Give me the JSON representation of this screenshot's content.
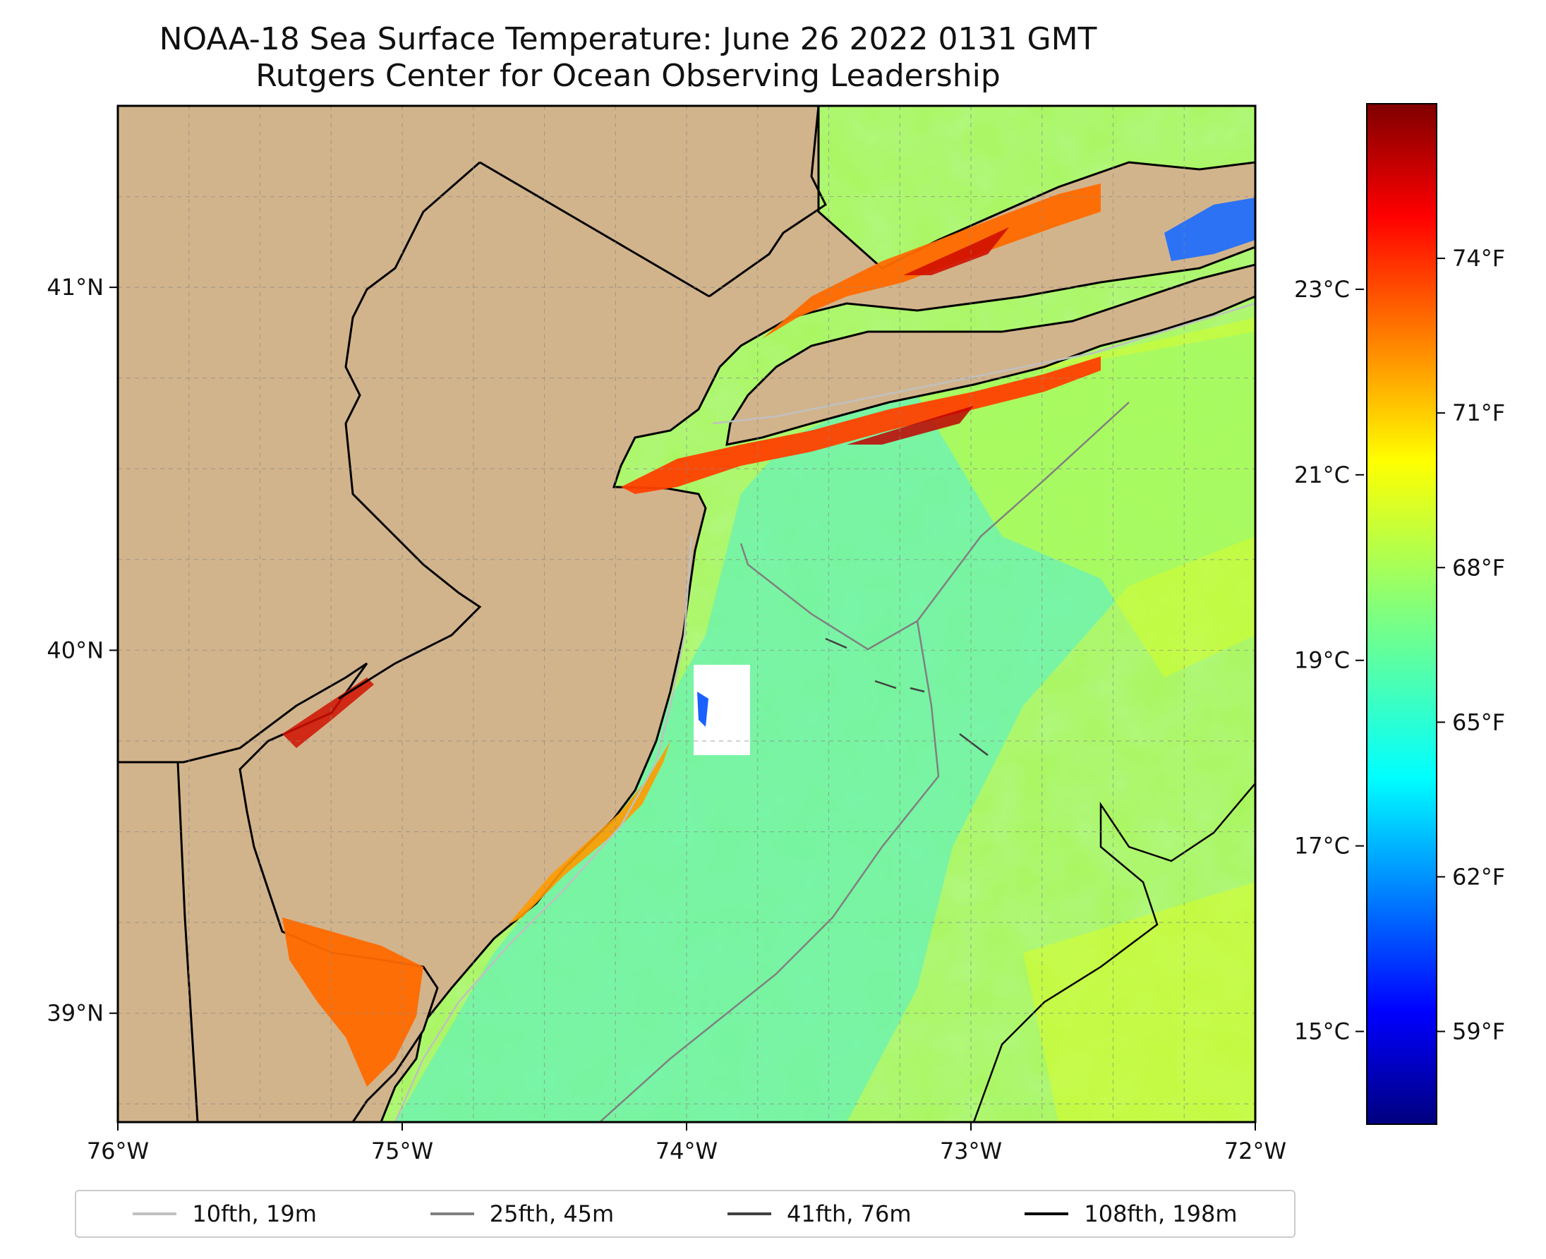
{
  "header": {
    "title_line1": "NOAA-18 Sea Surface Temperature: June 26 2022 0131 GMT",
    "title_line2": "Rutgers Center for Ocean Observing Leadership"
  },
  "map": {
    "lon_range": [
      -76,
      -72
    ],
    "lat_range": [
      38.7,
      41.5
    ],
    "lon_ticks": [
      {
        "value": -76,
        "label": "76°W"
      },
      {
        "value": -75,
        "label": "75°W"
      },
      {
        "value": -74,
        "label": "74°W"
      },
      {
        "value": -73,
        "label": "73°W"
      },
      {
        "value": -72,
        "label": "72°W"
      }
    ],
    "lat_ticks": [
      {
        "value": 39,
        "label": "39°N"
      },
      {
        "value": 40,
        "label": "40°N"
      },
      {
        "value": 41,
        "label": "41°N"
      }
    ],
    "land_color": "#d2b48c",
    "grid": true
  },
  "colorbar": {
    "colormap": "jet",
    "fahrenheit_ticks": [
      {
        "value": 59,
        "label": "59°F"
      },
      {
        "value": 62,
        "label": "62°F"
      },
      {
        "value": 65,
        "label": "65°F"
      },
      {
        "value": 68,
        "label": "68°F"
      },
      {
        "value": 71,
        "label": "71°F"
      },
      {
        "value": 74,
        "label": "74°F"
      }
    ],
    "celsius_ticks": [
      {
        "value": 15,
        "label": "15°C"
      },
      {
        "value": 17,
        "label": "17°C"
      },
      {
        "value": 19,
        "label": "19°C"
      },
      {
        "value": 21,
        "label": "21°C"
      },
      {
        "value": 23,
        "label": "23°C"
      }
    ]
  },
  "legend": {
    "items": [
      {
        "label": "10fth, 19m",
        "color": "#c0c0c0"
      },
      {
        "label": "25fth, 45m",
        "color": "#808080"
      },
      {
        "label": "41fth, 76m",
        "color": "#404040"
      },
      {
        "label": "108fth, 198m",
        "color": "#000000"
      }
    ]
  }
}
